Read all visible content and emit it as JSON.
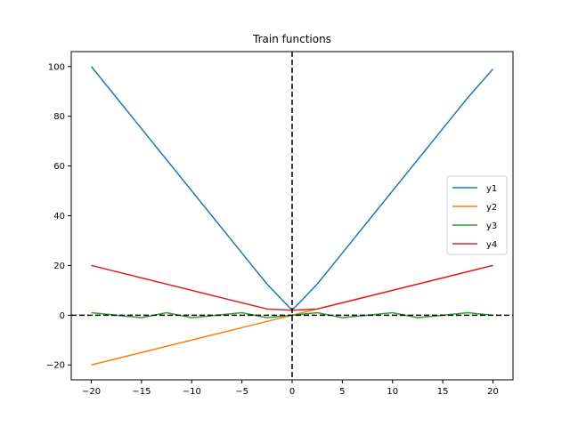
{
  "chart_data": {
    "type": "line",
    "title": "Train functions",
    "xlabel": "",
    "ylabel": "",
    "xlim": [
      -22,
      22
    ],
    "ylim": [
      -26,
      106
    ],
    "xticks": [
      -20,
      -15,
      -10,
      -5,
      0,
      5,
      10,
      15,
      20
    ],
    "xtick_labels": [
      "−20",
      "−15",
      "−10",
      "−5",
      "0",
      "5",
      "10",
      "15",
      "20"
    ],
    "yticks": [
      -20,
      0,
      20,
      40,
      60,
      80,
      100
    ],
    "ytick_labels": [
      "−20",
      "0",
      "20",
      "40",
      "60",
      "80",
      "100"
    ],
    "grid": false,
    "legend_position": "center-right",
    "reference_lines": [
      {
        "orientation": "horizontal",
        "value": 0,
        "style": "dashed",
        "color": "#000000"
      },
      {
        "orientation": "vertical",
        "value": 0,
        "style": "dashed",
        "color": "#000000"
      }
    ],
    "x": [
      -20,
      -17.5,
      -15,
      -12.5,
      -10,
      -7.5,
      -5,
      -2.5,
      0,
      2.5,
      5,
      7.5,
      10,
      12.5,
      15,
      17.5,
      20
    ],
    "series": [
      {
        "name": "y1",
        "color": "#1f77b4",
        "values": [
          100,
          87.5,
          75,
          62.5,
          50,
          37.5,
          25,
          12.5,
          2,
          12.5,
          25,
          37.5,
          50,
          62.5,
          75,
          87.5,
          99
        ]
      },
      {
        "name": "y2",
        "color": "#ff7f0e",
        "values": [
          -20,
          -17.5,
          -15,
          -12.5,
          -10,
          -7.5,
          -5,
          -2.5,
          0,
          2.5,
          5,
          7.5,
          10,
          12.5,
          15,
          17.5,
          20
        ]
      },
      {
        "name": "y3",
        "color": "#2ca02c",
        "values": [
          1,
          0,
          -1,
          1,
          -1,
          0,
          1,
          -1,
          0,
          1,
          -1,
          0,
          1,
          -1,
          0,
          1,
          0
        ]
      },
      {
        "name": "y4",
        "color": "#d62728",
        "values": [
          20,
          17.5,
          15,
          12.5,
          10,
          7.5,
          5,
          2.5,
          2,
          2.5,
          5,
          7.5,
          10,
          12.5,
          15,
          17.5,
          20
        ]
      }
    ]
  }
}
